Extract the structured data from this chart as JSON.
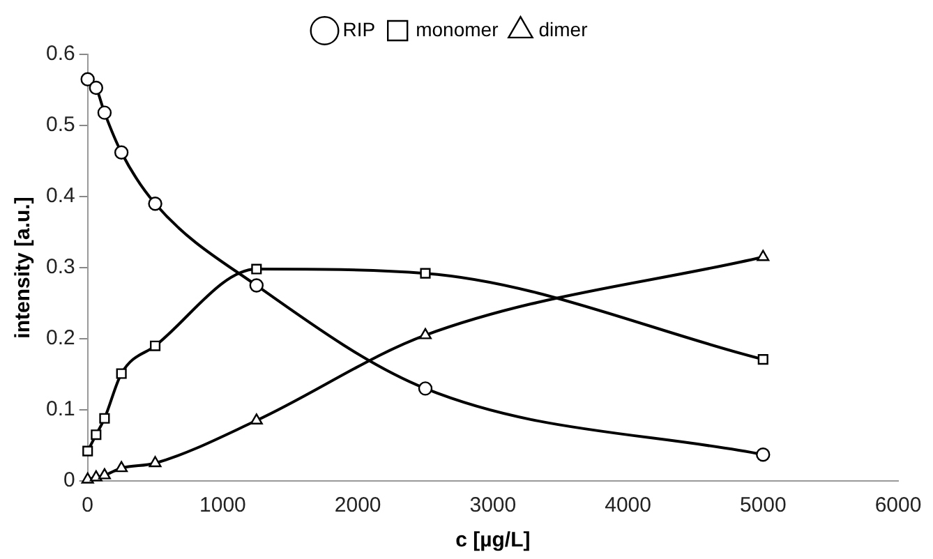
{
  "chart_data": {
    "type": "line",
    "xlabel": "c [µg/L]",
    "ylabel": "intensity [a.u.]",
    "xlim": [
      0,
      6000
    ],
    "xticks": [
      0,
      1000,
      2000,
      3000,
      4000,
      5000,
      6000
    ],
    "ylim": [
      0,
      0.6
    ],
    "yticks": [
      0,
      0.1,
      0.2,
      0.3,
      0.4,
      0.5,
      0.6
    ],
    "x": [
      0,
      62.5,
      125,
      250,
      500,
      1250,
      2500,
      5000
    ],
    "grid": false,
    "legend": "top",
    "line_style": "solid",
    "series": [
      {
        "name": "RIP",
        "color": "#000000",
        "marker": "circle",
        "values": [
          0.565,
          0.553,
          0.518,
          0.462,
          0.39,
          0.275,
          0.13,
          0.037
        ]
      },
      {
        "name": "monomer",
        "color": "#000000",
        "marker": "square",
        "values": [
          0.042,
          0.065,
          0.088,
          0.151,
          0.19,
          0.298,
          0.292,
          0.171
        ]
      },
      {
        "name": "dimer",
        "color": "#000000",
        "marker": "triangle",
        "values": [
          0.002,
          0.005,
          0.008,
          0.018,
          0.025,
          0.085,
          0.205,
          0.315
        ]
      }
    ]
  }
}
